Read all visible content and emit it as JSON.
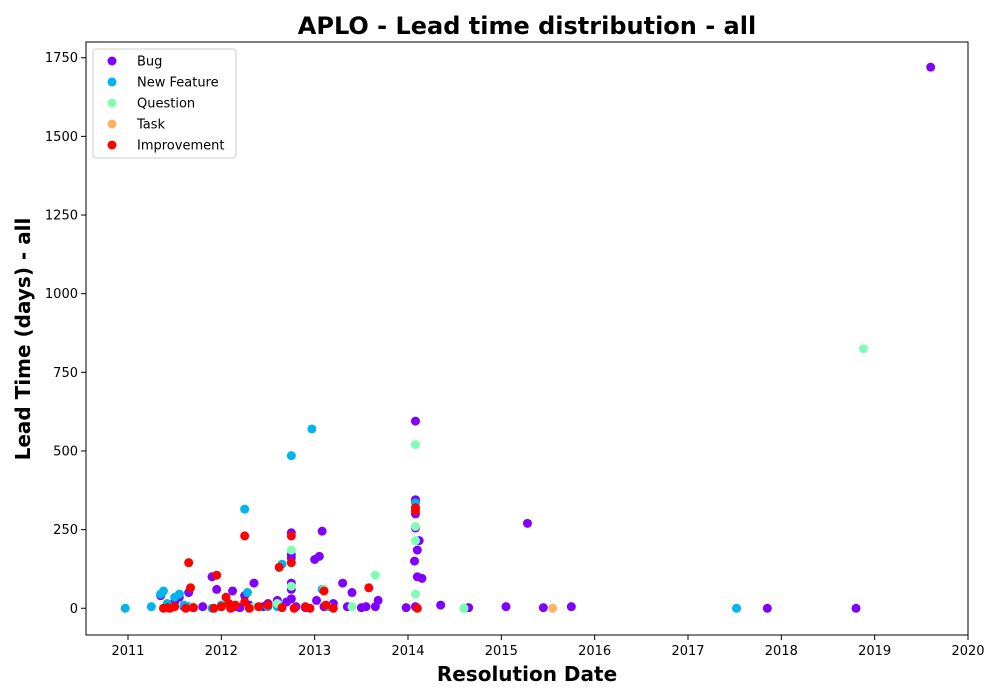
{
  "chart_data": {
    "type": "scatter",
    "title": "APLO - Lead time distribution - all",
    "xlabel": "Resolution Date",
    "ylabel": "Lead Time (days) - all",
    "xlim": [
      2010.55,
      2020.0
    ],
    "ylim": [
      -85,
      1800
    ],
    "x_ticks": [
      "2011",
      "2012",
      "2013",
      "2014",
      "2015",
      "2016",
      "2017",
      "2018",
      "2019",
      "2020"
    ],
    "y_ticks": [
      "0",
      "250",
      "500",
      "750",
      "1000",
      "1250",
      "1500",
      "1750"
    ],
    "grid": false,
    "legend_position": "top-left",
    "series": [
      {
        "name": "Bug",
        "color": "#8000ff",
        "points": [
          [
            2011.35,
            40
          ],
          [
            2011.4,
            3
          ],
          [
            2011.45,
            10
          ],
          [
            2011.5,
            20
          ],
          [
            2011.55,
            35
          ],
          [
            2011.6,
            5
          ],
          [
            2011.65,
            50
          ],
          [
            2011.7,
            2
          ],
          [
            2011.8,
            5
          ],
          [
            2011.9,
            100
          ],
          [
            2011.95,
            60
          ],
          [
            2012.0,
            5
          ],
          [
            2012.1,
            10
          ],
          [
            2012.12,
            55
          ],
          [
            2012.15,
            5
          ],
          [
            2012.2,
            2
          ],
          [
            2012.25,
            40
          ],
          [
            2012.3,
            10
          ],
          [
            2012.35,
            80
          ],
          [
            2012.45,
            5
          ],
          [
            2012.5,
            15
          ],
          [
            2012.6,
            25
          ],
          [
            2012.65,
            5
          ],
          [
            2012.7,
            20
          ],
          [
            2012.75,
            240
          ],
          [
            2012.75,
            170
          ],
          [
            2012.75,
            160
          ],
          [
            2012.75,
            80
          ],
          [
            2012.75,
            60
          ],
          [
            2012.75,
            30
          ],
          [
            2012.8,
            5
          ],
          [
            2012.9,
            2
          ],
          [
            2013.0,
            155
          ],
          [
            2013.02,
            25
          ],
          [
            2013.05,
            165
          ],
          [
            2013.08,
            245
          ],
          [
            2013.1,
            5
          ],
          [
            2013.2,
            15
          ],
          [
            2013.3,
            80
          ],
          [
            2013.35,
            5
          ],
          [
            2013.4,
            50
          ],
          [
            2013.5,
            2
          ],
          [
            2013.55,
            5
          ],
          [
            2013.65,
            5
          ],
          [
            2013.68,
            25
          ],
          [
            2013.98,
            2
          ],
          [
            2014.08,
            595
          ],
          [
            2014.08,
            345
          ],
          [
            2014.08,
            340
          ],
          [
            2014.08,
            300
          ],
          [
            2014.08,
            255
          ],
          [
            2014.1,
            185
          ],
          [
            2014.07,
            150
          ],
          [
            2014.12,
            215
          ],
          [
            2014.1,
            100
          ],
          [
            2014.15,
            95
          ],
          [
            2014.08,
            5
          ],
          [
            2014.35,
            10
          ],
          [
            2014.65,
            2
          ],
          [
            2015.05,
            5
          ],
          [
            2015.28,
            270
          ],
          [
            2015.45,
            2
          ],
          [
            2015.75,
            5
          ],
          [
            2017.85,
            0
          ],
          [
            2018.8,
            0
          ],
          [
            2019.6,
            1720
          ]
        ]
      },
      {
        "name": "New Feature",
        "color": "#00b5eb",
        "points": [
          [
            2010.97,
            0
          ],
          [
            2011.25,
            5
          ],
          [
            2011.35,
            45
          ],
          [
            2011.38,
            55
          ],
          [
            2011.42,
            15
          ],
          [
            2011.5,
            35
          ],
          [
            2011.55,
            45
          ],
          [
            2011.6,
            10
          ],
          [
            2011.65,
            5
          ],
          [
            2011.9,
            0
          ],
          [
            2012.0,
            10
          ],
          [
            2012.25,
            315
          ],
          [
            2012.28,
            50
          ],
          [
            2012.5,
            5
          ],
          [
            2012.6,
            5
          ],
          [
            2012.65,
            140
          ],
          [
            2012.75,
            485
          ],
          [
            2012.97,
            570
          ],
          [
            2013.08,
            60
          ],
          [
            2013.15,
            5
          ],
          [
            2014.08,
            335
          ],
          [
            2014.6,
            0
          ],
          [
            2017.52,
            0
          ]
        ]
      },
      {
        "name": "Question",
        "color": "#80ffb4",
        "points": [
          [
            2011.7,
            5
          ],
          [
            2012.1,
            10
          ],
          [
            2012.35,
            5
          ],
          [
            2012.6,
            15
          ],
          [
            2012.75,
            185
          ],
          [
            2012.75,
            70
          ],
          [
            2013.1,
            60
          ],
          [
            2013.4,
            5
          ],
          [
            2013.65,
            105
          ],
          [
            2014.08,
            520
          ],
          [
            2014.08,
            260
          ],
          [
            2014.08,
            215
          ],
          [
            2014.08,
            45
          ],
          [
            2014.6,
            0
          ],
          [
            2018.88,
            825
          ]
        ]
      },
      {
        "name": "Task",
        "color": "#ffb360",
        "points": [
          [
            2015.55,
            0
          ]
        ]
      },
      {
        "name": "Improvement",
        "color": "#ff0000",
        "points": [
          [
            2011.38,
            0
          ],
          [
            2011.42,
            2
          ],
          [
            2011.45,
            0
          ],
          [
            2011.5,
            5
          ],
          [
            2011.62,
            0
          ],
          [
            2011.65,
            145
          ],
          [
            2011.67,
            65
          ],
          [
            2011.7,
            2
          ],
          [
            2011.92,
            0
          ],
          [
            2011.95,
            105
          ],
          [
            2012.0,
            5
          ],
          [
            2012.05,
            35
          ],
          [
            2012.08,
            15
          ],
          [
            2012.1,
            0
          ],
          [
            2012.12,
            5
          ],
          [
            2012.15,
            10
          ],
          [
            2012.25,
            230
          ],
          [
            2012.25,
            20
          ],
          [
            2012.3,
            0
          ],
          [
            2012.4,
            5
          ],
          [
            2012.5,
            10
          ],
          [
            2012.62,
            130
          ],
          [
            2012.65,
            2
          ],
          [
            2012.75,
            230
          ],
          [
            2012.75,
            145
          ],
          [
            2012.78,
            0
          ],
          [
            2012.9,
            5
          ],
          [
            2012.95,
            0
          ],
          [
            2013.1,
            55
          ],
          [
            2013.12,
            10
          ],
          [
            2013.2,
            0
          ],
          [
            2013.58,
            65
          ],
          [
            2014.08,
            320
          ],
          [
            2014.08,
            310
          ],
          [
            2014.1,
            0
          ]
        ]
      }
    ]
  }
}
